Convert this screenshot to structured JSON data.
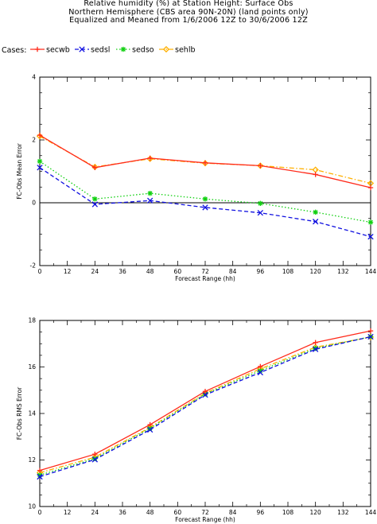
{
  "title_lines": [
    "Relative humidity (%) at Station Height:  Surface Obs",
    "Northern Hemisphere (CBS area 90N-20N) (land points only)",
    "Equalized and Meaned from 1/6/2006 12Z to 30/6/2006 12Z"
  ],
  "legend": {
    "label": "Cases:",
    "entries": [
      {
        "name": "secwb",
        "color": "#ff2a1a",
        "marker": "plus",
        "dash": "solid"
      },
      {
        "name": "sedsl",
        "color": "#1010e0",
        "marker": "x",
        "dash": "dashed"
      },
      {
        "name": "sedso",
        "color": "#10d010",
        "marker": "asterisk",
        "dash": "dotted"
      },
      {
        "name": "sehlb",
        "color": "#ffb000",
        "marker": "diamond",
        "dash": "dashdot"
      }
    ]
  },
  "chart_data": [
    {
      "type": "line",
      "xlabel": "Forecast Range (hh)",
      "ylabel": "FC-Obs Mean Error",
      "xlim": [
        0,
        144
      ],
      "ylim": [
        -2,
        4
      ],
      "xticks": [
        0,
        12,
        24,
        36,
        48,
        60,
        72,
        84,
        96,
        108,
        120,
        132,
        144
      ],
      "yticks": [
        -2,
        0,
        2,
        4
      ],
      "zero_line": true,
      "x": [
        0,
        24,
        48,
        72,
        96,
        120,
        144
      ],
      "series": [
        {
          "name": "secwb",
          "values": [
            2.15,
            1.12,
            1.42,
            1.27,
            1.18,
            0.9,
            0.48
          ]
        },
        {
          "name": "sehlb",
          "values": [
            2.12,
            1.14,
            1.4,
            1.26,
            1.18,
            1.05,
            0.62
          ]
        },
        {
          "name": "sedso",
          "values": [
            1.32,
            0.12,
            0.3,
            0.12,
            -0.02,
            -0.3,
            -0.62
          ]
        },
        {
          "name": "sedsl",
          "values": [
            1.12,
            -0.05,
            0.07,
            -0.15,
            -0.32,
            -0.6,
            -1.08
          ]
        }
      ]
    },
    {
      "type": "line",
      "xlabel": "Forecast Range (hh)",
      "ylabel": "FC-Obs RMS Error",
      "xlim": [
        0,
        144
      ],
      "ylim": [
        10,
        18
      ],
      "xticks": [
        0,
        12,
        24,
        36,
        48,
        60,
        72,
        84,
        96,
        108,
        120,
        132,
        144
      ],
      "yticks": [
        10,
        12,
        14,
        16,
        18
      ],
      "x": [
        0,
        24,
        48,
        72,
        96,
        120,
        144
      ],
      "series": [
        {
          "name": "secwb",
          "values": [
            11.55,
            12.25,
            13.52,
            14.95,
            16.02,
            17.05,
            17.55
          ]
        },
        {
          "name": "sehlb",
          "values": [
            11.45,
            12.12,
            13.4,
            14.87,
            15.92,
            16.85,
            17.28
          ]
        },
        {
          "name": "sedso",
          "values": [
            11.35,
            12.06,
            13.36,
            14.84,
            15.84,
            16.8,
            17.3
          ]
        },
        {
          "name": "sedsl",
          "values": [
            11.28,
            12.02,
            13.3,
            14.8,
            15.76,
            16.76,
            17.3
          ]
        }
      ]
    }
  ]
}
